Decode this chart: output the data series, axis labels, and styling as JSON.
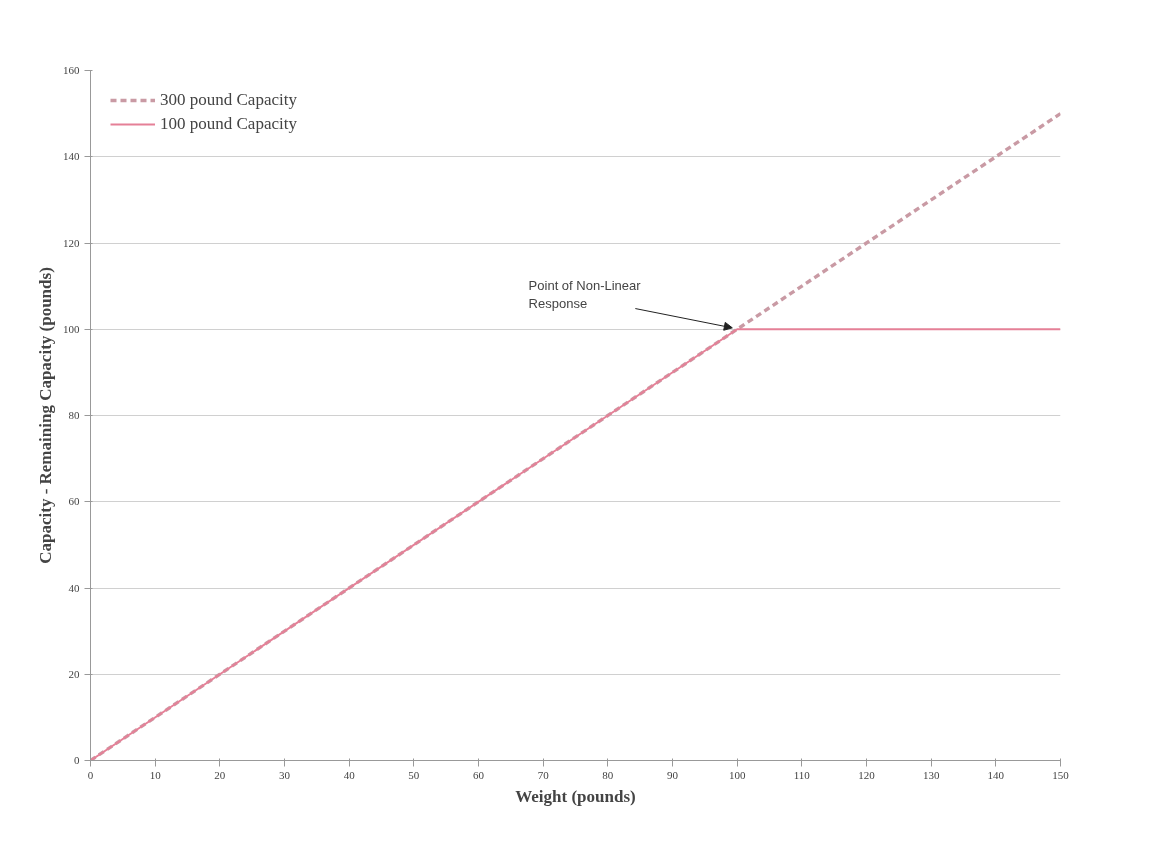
{
  "chart_data": {
    "type": "line",
    "xlabel": "Weight (pounds)",
    "ylabel": "Capacity - Remaining Capacity (pounds)",
    "xlim": [
      0,
      150
    ],
    "xticks": [
      0,
      10,
      20,
      30,
      40,
      50,
      60,
      70,
      80,
      90,
      100,
      110,
      120,
      130,
      140,
      150
    ],
    "ylim": [
      0,
      160
    ],
    "yticks": [
      0,
      20,
      40,
      60,
      80,
      100,
      120,
      140,
      160
    ],
    "grid": "y",
    "legend": "top left",
    "marker": "none",
    "series": [
      {
        "name": "300 pound Capacity",
        "color": "#c99aa4",
        "line_style": "dashed",
        "x": [
          0,
          150
        ],
        "values": [
          0,
          150
        ]
      },
      {
        "name": "100 pound Capacity",
        "color": "#e58097",
        "line_style": "solid",
        "x": [
          0,
          100,
          150
        ],
        "values": [
          0,
          100,
          100
        ]
      }
    ],
    "annotations": [
      {
        "text": "Point of Non-Linear\nResponse",
        "x": 100,
        "y": 100
      }
    ]
  }
}
